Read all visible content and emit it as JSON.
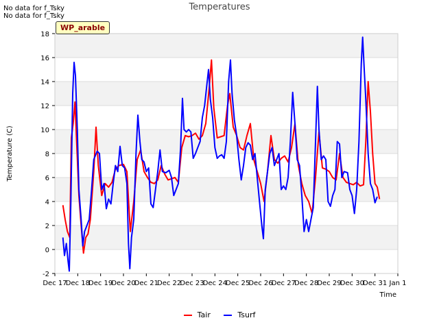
{
  "notes": [
    "No data for f_Tsky",
    "No data for f_Tsky"
  ],
  "site_label": "WP_arable",
  "colors": {
    "Tair": "#ff0000",
    "Tsurf": "#0000ff",
    "band": "#f2f2f2",
    "grid": "#dcdcdc"
  },
  "chart_data": {
    "type": "line",
    "title": "Temperatures",
    "xlabel": "Time",
    "ylabel": "Temperature (C)",
    "ylim": [
      -2,
      18
    ],
    "xlim": [
      17,
      32
    ],
    "yticks": [
      -2,
      0,
      2,
      4,
      6,
      8,
      10,
      12,
      14,
      16,
      18
    ],
    "xticks": [
      {
        "value": 17,
        "label": "Dec 17"
      },
      {
        "value": 18,
        "label": "Dec 18"
      },
      {
        "value": 19,
        "label": "Dec 19"
      },
      {
        "value": 20,
        "label": "Dec 20"
      },
      {
        "value": 21,
        "label": "Dec 21"
      },
      {
        "value": 22,
        "label": "Dec 22"
      },
      {
        "value": 23,
        "label": "Dec 23"
      },
      {
        "value": 24,
        "label": "Dec 24"
      },
      {
        "value": 25,
        "label": "Dec 25"
      },
      {
        "value": 26,
        "label": "Dec 26"
      },
      {
        "value": 27,
        "label": "Dec 27"
      },
      {
        "value": 28,
        "label": "Dec 28"
      },
      {
        "value": 29,
        "label": "Dec 29"
      },
      {
        "value": 30,
        "label": "Dec 30"
      },
      {
        "value": 31,
        "label": "Dec 31"
      },
      {
        "value": 32,
        "label": "Jan 1"
      }
    ],
    "legend_position": "bottom-center",
    "series": [
      {
        "name": "Tair",
        "color": "#ff0000",
        "points": [
          [
            17.35,
            3.7
          ],
          [
            17.45,
            2.5
          ],
          [
            17.55,
            1.5
          ],
          [
            17.65,
            1.0
          ],
          [
            17.72,
            9.3
          ],
          [
            17.8,
            10.5
          ],
          [
            17.88,
            12.3
          ],
          [
            17.95,
            9.0
          ],
          [
            18.05,
            4.5
          ],
          [
            18.15,
            2.0
          ],
          [
            18.25,
            -0.3
          ],
          [
            18.35,
            1.0
          ],
          [
            18.45,
            1.3
          ],
          [
            18.55,
            2.5
          ],
          [
            18.7,
            6.5
          ],
          [
            18.8,
            10.2
          ],
          [
            18.9,
            7.0
          ],
          [
            19.05,
            4.5
          ],
          [
            19.2,
            5.5
          ],
          [
            19.35,
            5.2
          ],
          [
            19.5,
            5.6
          ],
          [
            19.65,
            6.7
          ],
          [
            19.8,
            7.0
          ],
          [
            20.0,
            7.1
          ],
          [
            20.15,
            6.5
          ],
          [
            20.3,
            1.5
          ],
          [
            20.45,
            4.0
          ],
          [
            20.6,
            7.5
          ],
          [
            20.75,
            8.3
          ],
          [
            20.9,
            6.5
          ],
          [
            21.05,
            6.0
          ],
          [
            21.2,
            5.6
          ],
          [
            21.35,
            5.5
          ],
          [
            21.5,
            5.8
          ],
          [
            21.65,
            7.0
          ],
          [
            21.8,
            6.3
          ],
          [
            21.95,
            5.8
          ],
          [
            22.1,
            5.9
          ],
          [
            22.25,
            6.0
          ],
          [
            22.4,
            5.6
          ],
          [
            22.55,
            8.5
          ],
          [
            22.7,
            9.5
          ],
          [
            22.85,
            9.4
          ],
          [
            23.0,
            9.5
          ],
          [
            23.15,
            9.7
          ],
          [
            23.3,
            9.2
          ],
          [
            23.45,
            9.5
          ],
          [
            23.6,
            10.5
          ],
          [
            23.75,
            13.5
          ],
          [
            23.85,
            15.8
          ],
          [
            23.95,
            11.8
          ],
          [
            24.1,
            9.3
          ],
          [
            24.25,
            9.4
          ],
          [
            24.4,
            9.5
          ],
          [
            24.55,
            12.0
          ],
          [
            24.65,
            13.0
          ],
          [
            24.8,
            10.2
          ],
          [
            24.95,
            9.5
          ],
          [
            25.1,
            8.5
          ],
          [
            25.25,
            8.3
          ],
          [
            25.4,
            9.5
          ],
          [
            25.55,
            10.5
          ],
          [
            25.7,
            7.5
          ],
          [
            25.85,
            6.5
          ],
          [
            26.0,
            5.5
          ],
          [
            26.15,
            4.0
          ],
          [
            26.3,
            6.5
          ],
          [
            26.45,
            9.5
          ],
          [
            26.6,
            7.5
          ],
          [
            26.75,
            7.2
          ],
          [
            26.9,
            7.6
          ],
          [
            27.05,
            7.8
          ],
          [
            27.2,
            7.3
          ],
          [
            27.35,
            8.5
          ],
          [
            27.5,
            10.5
          ],
          [
            27.65,
            7.0
          ],
          [
            27.8,
            5.5
          ],
          [
            27.95,
            4.5
          ],
          [
            28.1,
            4.0
          ],
          [
            28.25,
            3.0
          ],
          [
            28.4,
            6.0
          ],
          [
            28.55,
            9.8
          ],
          [
            28.7,
            6.8
          ],
          [
            28.85,
            6.7
          ],
          [
            29.0,
            6.5
          ],
          [
            29.15,
            6.0
          ],
          [
            29.3,
            5.8
          ],
          [
            29.45,
            8.0
          ],
          [
            29.6,
            6.0
          ],
          [
            29.75,
            5.6
          ],
          [
            29.9,
            5.5
          ],
          [
            30.05,
            5.4
          ],
          [
            30.2,
            5.6
          ],
          [
            30.35,
            5.3
          ],
          [
            30.5,
            5.4
          ],
          [
            30.6,
            9.0
          ],
          [
            30.7,
            14.0
          ],
          [
            30.8,
            11.5
          ],
          [
            30.9,
            8.0
          ],
          [
            31.0,
            5.5
          ],
          [
            31.1,
            5.2
          ],
          [
            31.2,
            4.2
          ]
        ]
      },
      {
        "name": "Tsurf",
        "color": "#0000ff",
        "points": [
          [
            17.35,
            1.0
          ],
          [
            17.42,
            -0.5
          ],
          [
            17.5,
            0.5
          ],
          [
            17.58,
            -1.0
          ],
          [
            17.63,
            -1.8
          ],
          [
            17.7,
            4.0
          ],
          [
            17.78,
            13.0
          ],
          [
            17.84,
            15.6
          ],
          [
            17.9,
            14.5
          ],
          [
            17.98,
            10.0
          ],
          [
            18.05,
            5.0
          ],
          [
            18.15,
            2.5
          ],
          [
            18.22,
            0.3
          ],
          [
            18.3,
            1.5
          ],
          [
            18.4,
            2.0
          ],
          [
            18.5,
            2.5
          ],
          [
            18.6,
            4.8
          ],
          [
            18.7,
            7.5
          ],
          [
            18.85,
            8.2
          ],
          [
            18.95,
            8.0
          ],
          [
            19.05,
            5.0
          ],
          [
            19.15,
            5.5
          ],
          [
            19.25,
            3.4
          ],
          [
            19.35,
            4.2
          ],
          [
            19.45,
            3.8
          ],
          [
            19.55,
            5.5
          ],
          [
            19.65,
            7.0
          ],
          [
            19.75,
            6.5
          ],
          [
            19.85,
            8.6
          ],
          [
            19.95,
            7.0
          ],
          [
            20.05,
            6.8
          ],
          [
            20.15,
            5.5
          ],
          [
            20.22,
            0.5
          ],
          [
            20.28,
            -1.6
          ],
          [
            20.35,
            1.0
          ],
          [
            20.45,
            2.5
          ],
          [
            20.55,
            8.0
          ],
          [
            20.63,
            11.2
          ],
          [
            20.72,
            9.0
          ],
          [
            20.8,
            7.5
          ],
          [
            20.9,
            7.3
          ],
          [
            21.0,
            6.5
          ],
          [
            21.1,
            6.8
          ],
          [
            21.2,
            3.8
          ],
          [
            21.3,
            3.5
          ],
          [
            21.4,
            5.0
          ],
          [
            21.5,
            6.5
          ],
          [
            21.6,
            8.3
          ],
          [
            21.7,
            6.5
          ],
          [
            21.85,
            6.4
          ],
          [
            22.0,
            6.6
          ],
          [
            22.1,
            6.0
          ],
          [
            22.2,
            4.5
          ],
          [
            22.3,
            5.0
          ],
          [
            22.4,
            5.5
          ],
          [
            22.5,
            8.5
          ],
          [
            22.58,
            12.6
          ],
          [
            22.65,
            10.0
          ],
          [
            22.75,
            9.8
          ],
          [
            22.85,
            10.0
          ],
          [
            22.95,
            9.8
          ],
          [
            23.05,
            7.6
          ],
          [
            23.15,
            8.0
          ],
          [
            23.25,
            8.5
          ],
          [
            23.35,
            9.0
          ],
          [
            23.45,
            11.0
          ],
          [
            23.55,
            12.0
          ],
          [
            23.65,
            13.8
          ],
          [
            23.72,
            15.0
          ],
          [
            23.8,
            12.5
          ],
          [
            23.9,
            11.0
          ],
          [
            24.0,
            8.5
          ],
          [
            24.1,
            7.6
          ],
          [
            24.2,
            7.8
          ],
          [
            24.3,
            7.9
          ],
          [
            24.4,
            7.6
          ],
          [
            24.5,
            9.0
          ],
          [
            24.6,
            14.0
          ],
          [
            24.68,
            15.8
          ],
          [
            24.75,
            13.0
          ],
          [
            24.85,
            10.8
          ],
          [
            24.95,
            9.5
          ],
          [
            25.05,
            7.5
          ],
          [
            25.15,
            5.8
          ],
          [
            25.25,
            7.0
          ],
          [
            25.35,
            8.5
          ],
          [
            25.45,
            8.9
          ],
          [
            25.55,
            8.7
          ],
          [
            25.65,
            7.5
          ],
          [
            25.75,
            8.0
          ],
          [
            25.85,
            6.0
          ],
          [
            25.95,
            4.0
          ],
          [
            26.05,
            2.0
          ],
          [
            26.12,
            0.9
          ],
          [
            26.2,
            5.0
          ],
          [
            26.3,
            6.5
          ],
          [
            26.4,
            8.0
          ],
          [
            26.5,
            8.5
          ],
          [
            26.6,
            7.0
          ],
          [
            26.7,
            7.5
          ],
          [
            26.8,
            8.0
          ],
          [
            26.9,
            5.0
          ],
          [
            27.0,
            5.3
          ],
          [
            27.1,
            5.0
          ],
          [
            27.2,
            6.0
          ],
          [
            27.3,
            9.0
          ],
          [
            27.4,
            13.1
          ],
          [
            27.5,
            10.5
          ],
          [
            27.6,
            7.5
          ],
          [
            27.7,
            7.0
          ],
          [
            27.8,
            4.5
          ],
          [
            27.9,
            1.5
          ],
          [
            28.0,
            2.5
          ],
          [
            28.1,
            1.5
          ],
          [
            28.2,
            2.5
          ],
          [
            28.3,
            3.5
          ],
          [
            28.4,
            9.0
          ],
          [
            28.48,
            13.6
          ],
          [
            28.55,
            10.0
          ],
          [
            28.65,
            7.5
          ],
          [
            28.75,
            7.8
          ],
          [
            28.85,
            7.5
          ],
          [
            28.95,
            4.0
          ],
          [
            29.05,
            3.6
          ],
          [
            29.15,
            4.5
          ],
          [
            29.25,
            5.0
          ],
          [
            29.35,
            9.0
          ],
          [
            29.45,
            8.8
          ],
          [
            29.55,
            6.0
          ],
          [
            29.65,
            6.5
          ],
          [
            29.8,
            6.4
          ],
          [
            29.9,
            5.0
          ],
          [
            30.0,
            4.5
          ],
          [
            30.1,
            3.0
          ],
          [
            30.2,
            5.0
          ],
          [
            30.3,
            9.0
          ],
          [
            30.4,
            15.5
          ],
          [
            30.46,
            17.7
          ],
          [
            30.53,
            15.0
          ],
          [
            30.6,
            12.5
          ],
          [
            30.7,
            8.0
          ],
          [
            30.8,
            5.5
          ],
          [
            30.9,
            5.0
          ],
          [
            31.0,
            3.9
          ],
          [
            31.1,
            4.4
          ]
        ]
      }
    ]
  }
}
